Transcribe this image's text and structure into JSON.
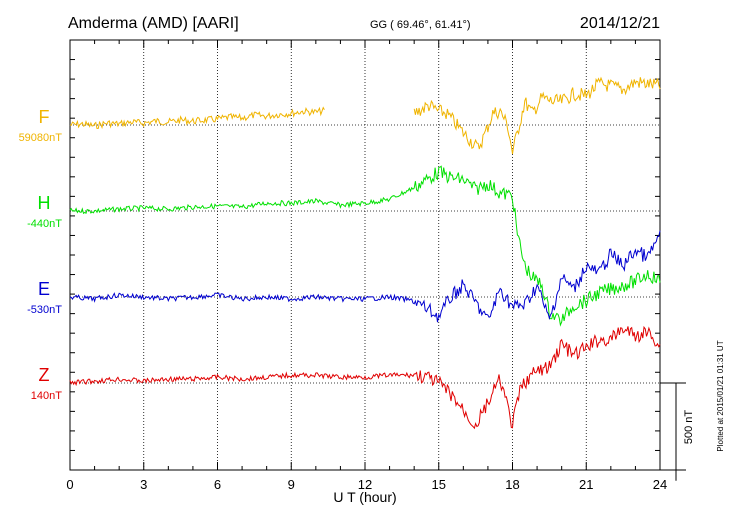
{
  "header": {
    "station": "Amderma (AMD)  [AARI]",
    "coords": "GG ( 69.46°,  61.41°)",
    "date": "2014/12/21"
  },
  "footer": {
    "plotted": "Plotted at 2015/01/21 01:31  UT"
  },
  "colors": {
    "F": "#f0b400",
    "H": "#00e000",
    "E": "#0000d0",
    "Z": "#e00000",
    "axis": "#000000",
    "grid": "#000000"
  },
  "chart_data": {
    "type": "line",
    "title": "Amderma (AMD)  [AARI]",
    "xlabel": "U T (hour)",
    "ylabel": "",
    "xlim": [
      0,
      24
    ],
    "x_ticks": [
      0,
      3,
      6,
      9,
      12,
      15,
      18,
      21,
      24
    ],
    "x_tick_labels": [
      "0",
      "3",
      "6",
      "9",
      "12",
      "15",
      "18",
      "21",
      "24"
    ],
    "grid": "dotted, vertical every 3 h, horizontal at each series baseline",
    "scale_bar": {
      "label": "500 nT",
      "value_nT": 500
    },
    "panel_span_nT": 2200,
    "series": [
      {
        "key": "F",
        "name": "F",
        "baseline_label": "59080nT",
        "baseline_nT": 59080,
        "color": "#f0b400",
        "gaps": [
          [
            10.4,
            14.0
          ]
        ],
        "x": [
          0,
          0.5,
          1,
          1.5,
          2,
          2.5,
          3,
          3.5,
          4,
          4.5,
          5,
          5.5,
          6,
          6.5,
          7,
          7.5,
          8,
          8.5,
          9,
          9.5,
          10,
          10.4,
          14.0,
          14.3,
          14.6,
          15.0,
          15.3,
          15.6,
          16.0,
          16.3,
          16.6,
          16.9,
          17.2,
          17.5,
          17.8,
          18.0,
          18.2,
          18.5,
          18.8,
          19.2,
          19.6,
          20.0,
          20.5,
          21.0,
          21.5,
          22.0,
          22.5,
          23.0,
          23.5,
          24.0
        ],
        "y": [
          0,
          5,
          -5,
          10,
          5,
          15,
          10,
          20,
          15,
          25,
          20,
          25,
          30,
          40,
          35,
          50,
          45,
          55,
          60,
          70,
          65,
          75,
          60,
          80,
          100,
          70,
          60,
          20,
          -40,
          -80,
          -120,
          -40,
          60,
          70,
          0,
          -140,
          -40,
          120,
          60,
          140,
          120,
          120,
          160,
          150,
          210,
          200,
          180,
          220,
          210,
          200
        ]
      },
      {
        "key": "H",
        "name": "H",
        "baseline_label": "-440nT",
        "baseline_nT": -440,
        "color": "#00e000",
        "gaps": [],
        "x": [
          0,
          1,
          2,
          3,
          4,
          5,
          6,
          7,
          8,
          9,
          10,
          11,
          12,
          13,
          13.5,
          14,
          14.5,
          15,
          15.5,
          16,
          16.5,
          17,
          17.5,
          18,
          18.2,
          18.5,
          18.8,
          19.2,
          19.5,
          20.0,
          20.5,
          21.0,
          21.5,
          22.0,
          22.5,
          23.0,
          23.5,
          24.0
        ],
        "y": [
          0,
          0,
          10,
          15,
          10,
          20,
          25,
          20,
          40,
          40,
          50,
          30,
          40,
          60,
          90,
          120,
          160,
          200,
          170,
          160,
          110,
          140,
          90,
          80,
          -120,
          -280,
          -340,
          -380,
          -520,
          -560,
          -480,
          -460,
          -420,
          -400,
          -380,
          -360,
          -320,
          -360
        ]
      },
      {
        "key": "E",
        "name": "E",
        "baseline_label": "-530nT",
        "baseline_nT": -530,
        "color": "#0000d0",
        "gaps": [],
        "x": [
          0,
          1,
          2,
          3,
          4,
          5,
          6,
          7,
          8,
          9,
          10,
          11,
          12,
          13,
          14,
          14.5,
          15,
          15.5,
          16,
          16.5,
          17,
          17.5,
          18,
          18.5,
          19,
          19.5,
          20,
          20.5,
          21,
          21.5,
          22,
          22.5,
          23,
          23.5,
          24
        ],
        "y": [
          0,
          -10,
          10,
          0,
          -10,
          0,
          10,
          -10,
          0,
          -10,
          0,
          -10,
          -10,
          0,
          -20,
          -60,
          -100,
          0,
          60,
          -30,
          -120,
          40,
          -50,
          -40,
          60,
          -120,
          100,
          40,
          160,
          120,
          220,
          160,
          240,
          200,
          320
        ]
      },
      {
        "key": "Z",
        "name": "Z",
        "baseline_label": "140nT",
        "baseline_nT": 140,
        "color": "#e00000",
        "gaps": [],
        "x": [
          0,
          1,
          2,
          3,
          4,
          5,
          6,
          7,
          8,
          9,
          10,
          11,
          12,
          13,
          14,
          14.5,
          15,
          15.5,
          16,
          16.5,
          17,
          17.5,
          18,
          18.3,
          18.6,
          19,
          19.5,
          20,
          20.5,
          21,
          21.5,
          22,
          22.5,
          23,
          23.5,
          24
        ],
        "y": [
          0,
          10,
          20,
          10,
          20,
          20,
          30,
          20,
          30,
          40,
          40,
          30,
          30,
          40,
          40,
          30,
          0,
          -60,
          -140,
          -220,
          -100,
          20,
          -220,
          -40,
          20,
          60,
          80,
          200,
          140,
          180,
          220,
          220,
          280,
          240,
          260,
          200
        ]
      }
    ]
  }
}
